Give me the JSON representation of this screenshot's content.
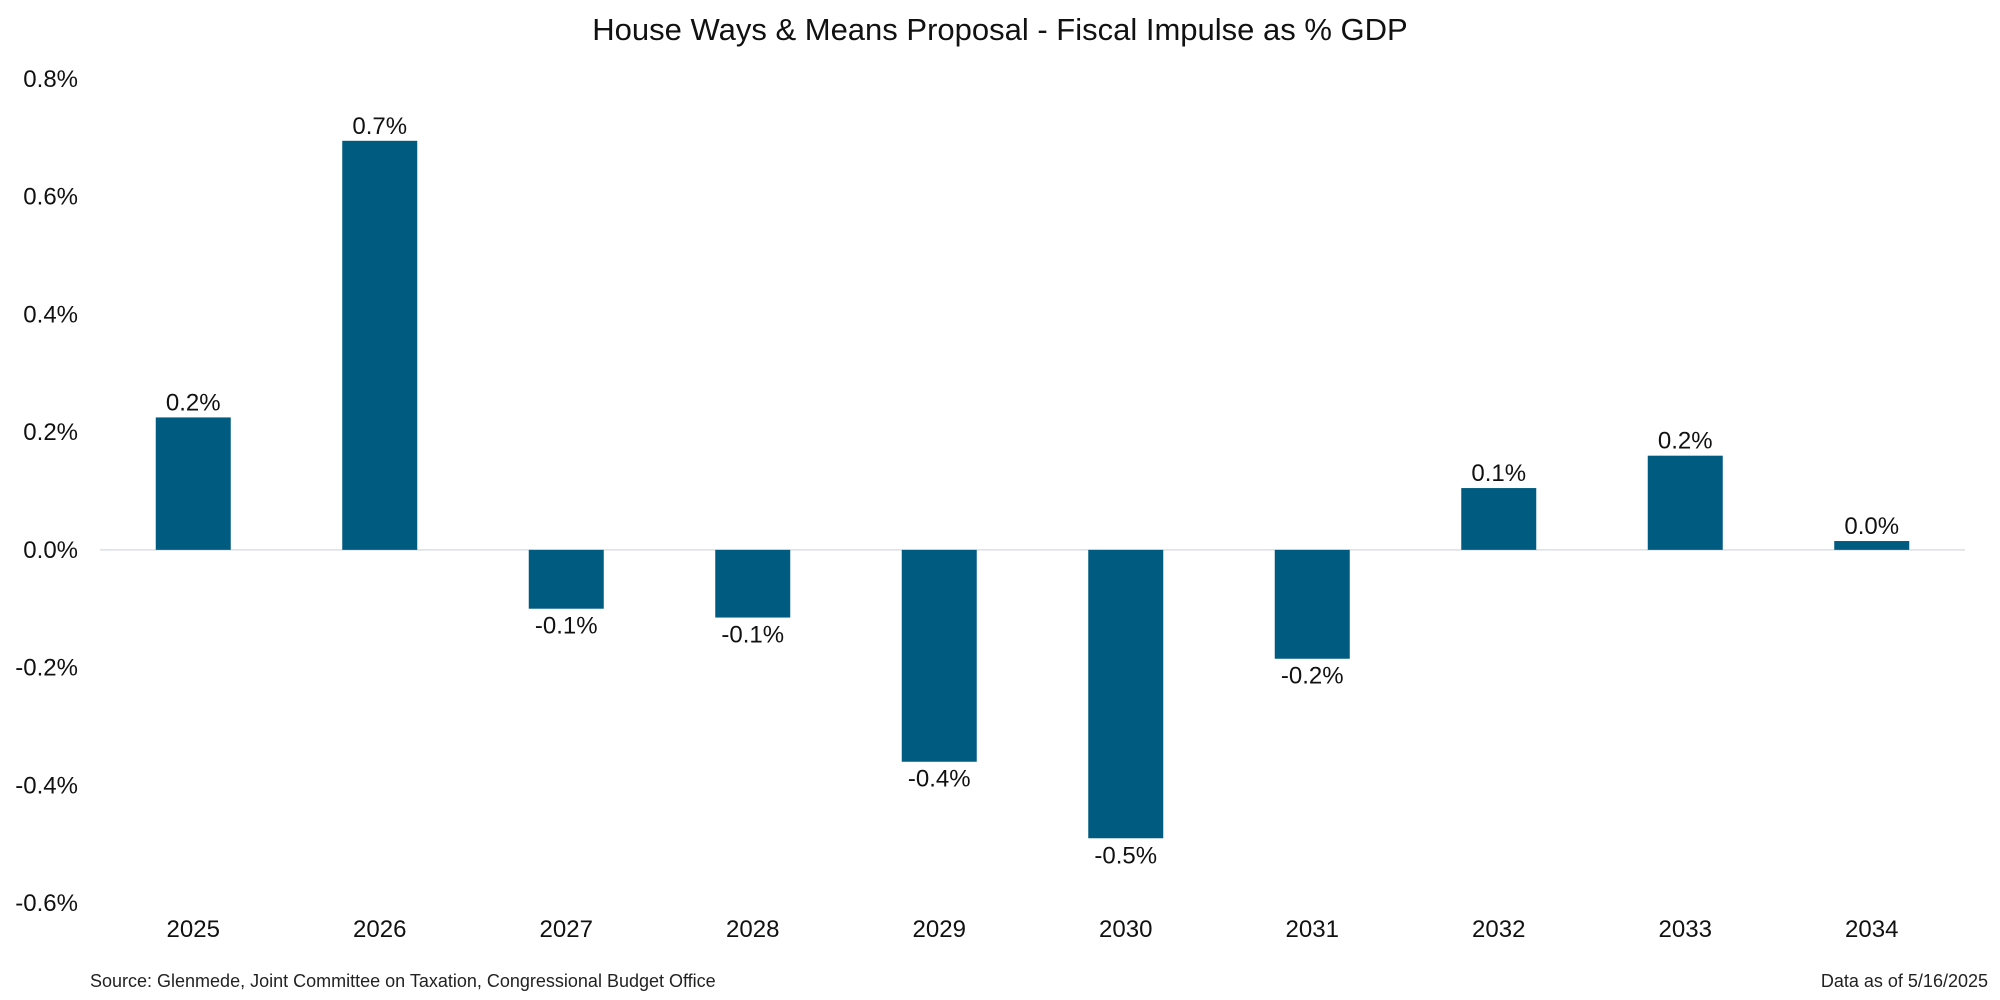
{
  "chart_data": {
    "type": "bar",
    "title": "House Ways & Means Proposal - Fiscal Impulse as % GDP",
    "xlabel": "",
    "ylabel": "",
    "categories": [
      "2025",
      "2026",
      "2027",
      "2028",
      "2029",
      "2030",
      "2031",
      "2032",
      "2033",
      "2034"
    ],
    "series": [
      {
        "values": [
          0.225,
          0.695,
          -0.1,
          -0.115,
          -0.36,
          -0.49,
          -0.185,
          0.105,
          0.16,
          0.015
        ],
        "data_labels": [
          "0.2%",
          "0.7%",
          "-0.1%",
          "-0.1%",
          "-0.4%",
          "-0.5%",
          "-0.2%",
          "0.1%",
          "0.2%",
          "0.0%"
        ],
        "color": "#005B80"
      }
    ],
    "ylim": [
      -0.6,
      0.8
    ],
    "yticks": [
      0.8,
      0.6,
      0.4,
      0.2,
      0.0,
      -0.2,
      -0.4,
      -0.6
    ],
    "ytick_labels": [
      "0.8%",
      "0.6%",
      "0.4%",
      "0.2%",
      "0.0%",
      "-0.2%",
      "-0.4%",
      "-0.6%"
    ],
    "grid": false,
    "legend": "none"
  },
  "footer": {
    "source": "Source: Glenmede, Joint Committee on Taxation, Congressional Budget Office",
    "as_of": "Data as of 5/16/2025"
  },
  "colors": {
    "bar": "#005B80",
    "zero_line": "#D9E1E7",
    "text": "#111111"
  }
}
